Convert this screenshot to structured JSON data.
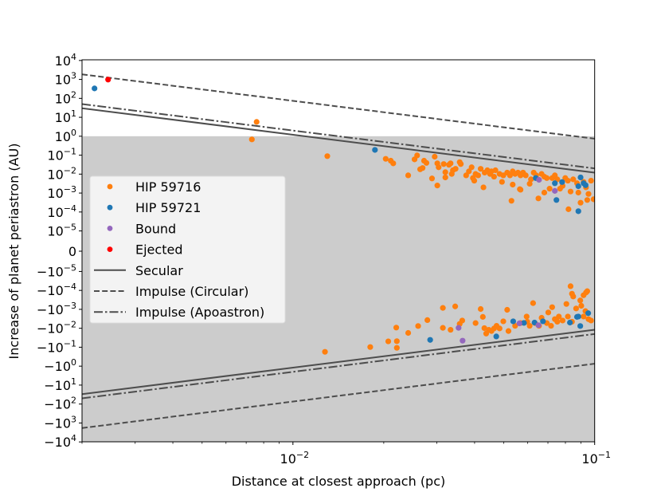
{
  "chart_data": {
    "type": "scatter",
    "title": "",
    "xlabel": "Distance at closest approach (pc)",
    "ylabel": "Increase of planet periastron (AU)",
    "xscale": "log",
    "yscale": "symlog",
    "ylinthresh": 1e-05,
    "xlim": [
      0.002,
      0.1
    ],
    "ylim": [
      -10000,
      10000
    ],
    "grid": false,
    "legend_position": "center-left",
    "shaded_region": {
      "y_from": -10000,
      "y_to": 1,
      "color": "#cccccc"
    },
    "x_ticks": [
      {
        "value": 0.01,
        "base": "10",
        "exp": "−2"
      },
      {
        "value": 0.1,
        "base": "10",
        "exp": "−1"
      }
    ],
    "y_ticks": [
      {
        "value": 10000,
        "base": "10",
        "exp": "4"
      },
      {
        "value": 1000,
        "base": "10",
        "exp": "3"
      },
      {
        "value": 100,
        "base": "10",
        "exp": "2"
      },
      {
        "value": 10,
        "base": "10",
        "exp": "1"
      },
      {
        "value": 1,
        "base": "10",
        "exp": "0"
      },
      {
        "value": 0.1,
        "base": "10",
        "exp": "−1"
      },
      {
        "value": 0.01,
        "base": "10",
        "exp": "−2"
      },
      {
        "value": 0.001,
        "base": "10",
        "exp": "−3"
      },
      {
        "value": 0.0001,
        "base": "10",
        "exp": "−4"
      },
      {
        "value": 1e-05,
        "base": "10",
        "exp": "−5"
      },
      {
        "value": 0,
        "base": "0",
        "exp": ""
      },
      {
        "value": -1e-05,
        "base": "−10",
        "exp": "−5"
      },
      {
        "value": -0.0001,
        "base": "−10",
        "exp": "−4"
      },
      {
        "value": -0.001,
        "base": "−10",
        "exp": "−3"
      },
      {
        "value": -0.01,
        "base": "−10",
        "exp": "−2"
      },
      {
        "value": -0.1,
        "base": "−10",
        "exp": "−1"
      },
      {
        "value": -1,
        "base": "−10",
        "exp": "0"
      },
      {
        "value": -10,
        "base": "−10",
        "exp": "1"
      },
      {
        "value": -100,
        "base": "−10",
        "exp": "2"
      },
      {
        "value": -1000,
        "base": "−10",
        "exp": "3"
      },
      {
        "value": -10000,
        "base": "−10",
        "exp": "4"
      }
    ],
    "lines": [
      {
        "name": "Secular",
        "style": "solid",
        "color": "#4d4d4d",
        "x": [
          0.002,
          0.1
        ],
        "y_pos": [
          30,
          0.012
        ],
        "y_neg": [
          -30,
          -0.012
        ]
      },
      {
        "name": "Impulse (Circular)",
        "style": "dashed",
        "color": "#4d4d4d",
        "x": [
          0.002,
          0.1
        ],
        "y_pos": [
          1850,
          0.74
        ],
        "y_neg": [
          -1850,
          -0.74
        ]
      },
      {
        "name": "Impulse (Apoastron)",
        "style": "dashdot",
        "color": "#4d4d4d",
        "x": [
          0.002,
          0.1
        ],
        "y_pos": [
          50,
          0.02
        ],
        "y_neg": [
          -50,
          -0.02
        ]
      }
    ],
    "series": [
      {
        "name": "HIP 59716",
        "color": "#ff7f0e",
        "points": [
          [
            0.00758,
            5.7
          ],
          [
            0.00731,
            0.68
          ],
          [
            0.013,
            0.089
          ],
          [
            0.0203,
            0.064
          ],
          [
            0.0211,
            0.051
          ],
          [
            0.0215,
            0.037
          ],
          [
            0.0241,
            0.0086
          ],
          [
            0.0253,
            0.06
          ],
          [
            0.0258,
            0.097
          ],
          [
            0.0264,
            0.018
          ],
          [
            0.0269,
            0.021
          ],
          [
            0.0272,
            0.051
          ],
          [
            0.0277,
            0.039
          ],
          [
            0.0289,
            0.0059
          ],
          [
            0.0295,
            0.083
          ],
          [
            0.0301,
            0.0025
          ],
          [
            0.0301,
            0.037
          ],
          [
            0.0304,
            0.023
          ],
          [
            0.0316,
            0.034
          ],
          [
            0.032,
            0.0127
          ],
          [
            0.032,
            0.0067
          ],
          [
            0.0329,
            0.031
          ],
          [
            0.0333,
            0.037
          ],
          [
            0.0336,
            0.0102
          ],
          [
            0.0339,
            0.016
          ],
          [
            0.0346,
            0.019
          ],
          [
            0.0357,
            0.043
          ],
          [
            0.036,
            0.034
          ],
          [
            0.0375,
            0.0086
          ],
          [
            0.0383,
            0.014
          ],
          [
            0.0391,
            0.023
          ],
          [
            0.0395,
            0.0062
          ],
          [
            0.0399,
            0.0045
          ],
          [
            0.0403,
            0.0102
          ],
          [
            0.0411,
            0.0086
          ],
          [
            0.0419,
            0.019
          ],
          [
            0.0428,
            0.002
          ],
          [
            0.0432,
            0.012
          ],
          [
            0.0441,
            0.016
          ],
          [
            0.045,
            0.0102
          ],
          [
            0.0455,
            0.014
          ],
          [
            0.0464,
            0.0073
          ],
          [
            0.0469,
            0.016
          ],
          [
            0.0484,
            0.0102
          ],
          [
            0.0493,
            0.0039
          ],
          [
            0.0498,
            0.0086
          ],
          [
            0.0513,
            0.012
          ],
          [
            0.0524,
            0.0086
          ],
          [
            0.0535,
            0.014
          ],
          [
            0.0535,
            0.0028
          ],
          [
            0.0545,
            0.0102
          ],
          [
            0.0557,
            0.012
          ],
          [
            0.0565,
            0.0016
          ],
          [
            0.0568,
            0.0086
          ],
          [
            0.0579,
            0.012
          ],
          [
            0.0591,
            0.0086
          ],
          [
            0.0609,
            0.0031
          ],
          [
            0.0615,
            0.0053
          ],
          [
            0.0628,
            0.012
          ],
          [
            0.064,
            0.0086
          ],
          [
            0.0651,
            0.00052
          ],
          [
            0.0667,
            0.0102
          ],
          [
            0.0681,
            0.0073
          ],
          [
            0.0681,
            0.00106
          ],
          [
            0.0694,
            0.0062
          ],
          [
            0.0709,
            0.0017
          ],
          [
            0.0723,
            0.0062
          ],
          [
            0.0738,
            0.0086
          ],
          [
            0.0752,
            0.0053
          ],
          [
            0.0768,
            0.0017
          ],
          [
            0.0783,
            0.0024
          ],
          [
            0.0799,
            0.0062
          ],
          [
            0.0815,
            0.0045
          ],
          [
            0.0819,
            0.00014
          ],
          [
            0.0832,
            0.0012
          ],
          [
            0.0849,
            0.0053
          ],
          [
            0.0874,
            0.0033
          ],
          [
            0.0883,
            0.00106
          ],
          [
            0.0898,
            0.00031
          ],
          [
            0.0919,
            0.0039
          ],
          [
            0.0936,
            0.002
          ],
          [
            0.0954,
            0.0009
          ],
          [
            0.0973,
            0.0045
          ],
          [
            0.0992,
            0.00047
          ],
          [
            0.053,
            0.00039
          ],
          [
            0.0945,
            0.00043
          ],
          [
            0.0568,
            0.0015
          ],
          [
            0.01277,
            -0.175
          ],
          [
            0.01804,
            -0.098
          ],
          [
            0.0207,
            -0.049
          ],
          [
            0.022,
            -0.0092
          ],
          [
            0.0221,
            -0.048
          ],
          [
            0.0221,
            -0.108
          ],
          [
            0.0241,
            -0.0176
          ],
          [
            0.026,
            -0.0076
          ],
          [
            0.0279,
            -0.0037
          ],
          [
            0.0314,
            -0.00084
          ],
          [
            0.0314,
            -0.0095
          ],
          [
            0.0333,
            -0.012
          ],
          [
            0.0345,
            -0.0007
          ],
          [
            0.0357,
            -0.0059
          ],
          [
            0.0364,
            -0.0039
          ],
          [
            0.0403,
            -0.0053
          ],
          [
            0.0419,
            -0.00096
          ],
          [
            0.0426,
            -0.0025
          ],
          [
            0.0431,
            -0.0098
          ],
          [
            0.0437,
            -0.019
          ],
          [
            0.0446,
            -0.012
          ],
          [
            0.0464,
            -0.0102
          ],
          [
            0.0473,
            -0.0074
          ],
          [
            0.0484,
            -0.0102
          ],
          [
            0.0498,
            -0.0043
          ],
          [
            0.0513,
            -0.00106
          ],
          [
            0.0518,
            -0.014
          ],
          [
            0.0545,
            -0.0074
          ],
          [
            0.0568,
            -0.0053
          ],
          [
            0.0595,
            -0.0024
          ],
          [
            0.0609,
            -0.0074
          ],
          [
            0.0625,
            -0.00047
          ],
          [
            0.0634,
            -0.0053
          ],
          [
            0.0667,
            -0.0028
          ],
          [
            0.0694,
            -0.0053
          ],
          [
            0.0702,
            -0.00146
          ],
          [
            0.0717,
            -0.0074
          ],
          [
            0.0723,
            -0.00077
          ],
          [
            0.0738,
            -0.0033
          ],
          [
            0.0761,
            -0.0024
          ],
          [
            0.0783,
            -0.0039
          ],
          [
            0.0806,
            -0.00052
          ],
          [
            0.0815,
            -0.0024
          ],
          [
            0.0832,
            -6e-05
          ],
          [
            0.0841,
            -0.00015
          ],
          [
            0.0849,
            -0.00021
          ],
          [
            0.0868,
            -0.0009
          ],
          [
            0.0896,
            -0.00034
          ],
          [
            0.0903,
            -0.00065
          ],
          [
            0.0919,
            -0.00018
          ],
          [
            0.0932,
            -0.00124
          ],
          [
            0.0936,
            -0.00013
          ],
          [
            0.0945,
            -0.00011
          ],
          [
            0.0954,
            -0.0033
          ],
          [
            0.0973,
            -0.0039
          ],
          [
            0.0841,
            -0.0045
          ],
          [
            0.0919,
            -0.0024
          ],
          [
            0.0752,
            -0.0045
          ],
          [
            0.0654,
            -0.0074
          ],
          [
            0.0598,
            -0.0045
          ],
          [
            0.0455,
            -0.014
          ]
        ]
      },
      {
        "name": "HIP 59721",
        "color": "#1f77b4",
        "points": [
          [
            0.0022,
            335
          ],
          [
            0.0187,
            0.19
          ],
          [
            0.0638,
            0.0062
          ],
          [
            0.0738,
            0.0033
          ],
          [
            0.078,
            0.0038
          ],
          [
            0.0747,
            0.00043
          ],
          [
            0.0898,
            0.0067
          ],
          [
            0.0883,
            0.0023
          ],
          [
            0.0919,
            0.0033
          ],
          [
            0.0933,
            0.0026
          ],
          [
            0.0883,
            0.00011
          ],
          [
            0.0285,
            -0.041
          ],
          [
            0.0472,
            -0.027
          ],
          [
            0.0537,
            -0.0043
          ],
          [
            0.0583,
            -0.0052
          ],
          [
            0.0632,
            -0.005
          ],
          [
            0.0674,
            -0.0043
          ],
          [
            0.0828,
            -0.005
          ],
          [
            0.0874,
            -0.0025
          ],
          [
            0.0883,
            -0.0024
          ],
          [
            0.0896,
            -0.0076
          ],
          [
            0.0952,
            -0.0016
          ]
        ]
      },
      {
        "name": "Bound",
        "color": "#9467bd",
        "points": [
          [
            0.0654,
            0.005
          ],
          [
            0.0738,
            0.0013
          ],
          [
            0.0354,
            -0.0095
          ],
          [
            0.0365,
            -0.045
          ],
          [
            0.0563,
            -0.0055
          ],
          [
            0.0651,
            -0.0069
          ]
        ]
      },
      {
        "name": "Ejected",
        "color": "#ff0000",
        "points": [
          [
            0.00244,
            980
          ]
        ]
      }
    ]
  }
}
